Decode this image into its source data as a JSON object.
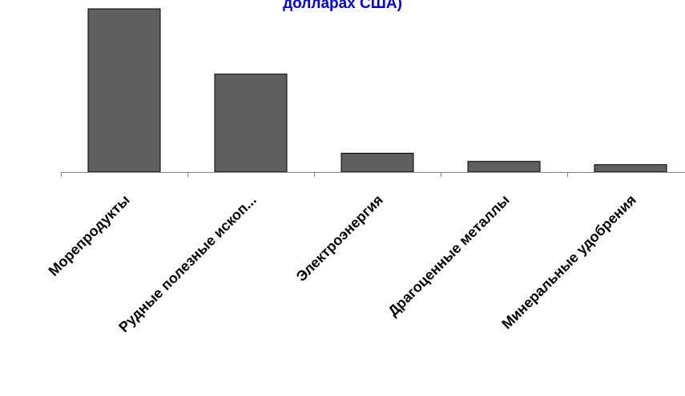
{
  "chart_data": {
    "type": "bar",
    "title": "долларах США)",
    "categories": [
      "Морепродукты",
      "Рудные полезные ископ...",
      "Электроэнергия",
      "Драгоценные металлы",
      "Минеральные удобрения"
    ],
    "values": [
      100,
      60,
      11.5,
      6.5,
      4.5
    ],
    "ylim": [
      0,
      100
    ],
    "grid": false,
    "legend": "none",
    "colors": {
      "bar": "#5f5f5f",
      "title": "#0000ee",
      "axis": "#808080"
    }
  }
}
